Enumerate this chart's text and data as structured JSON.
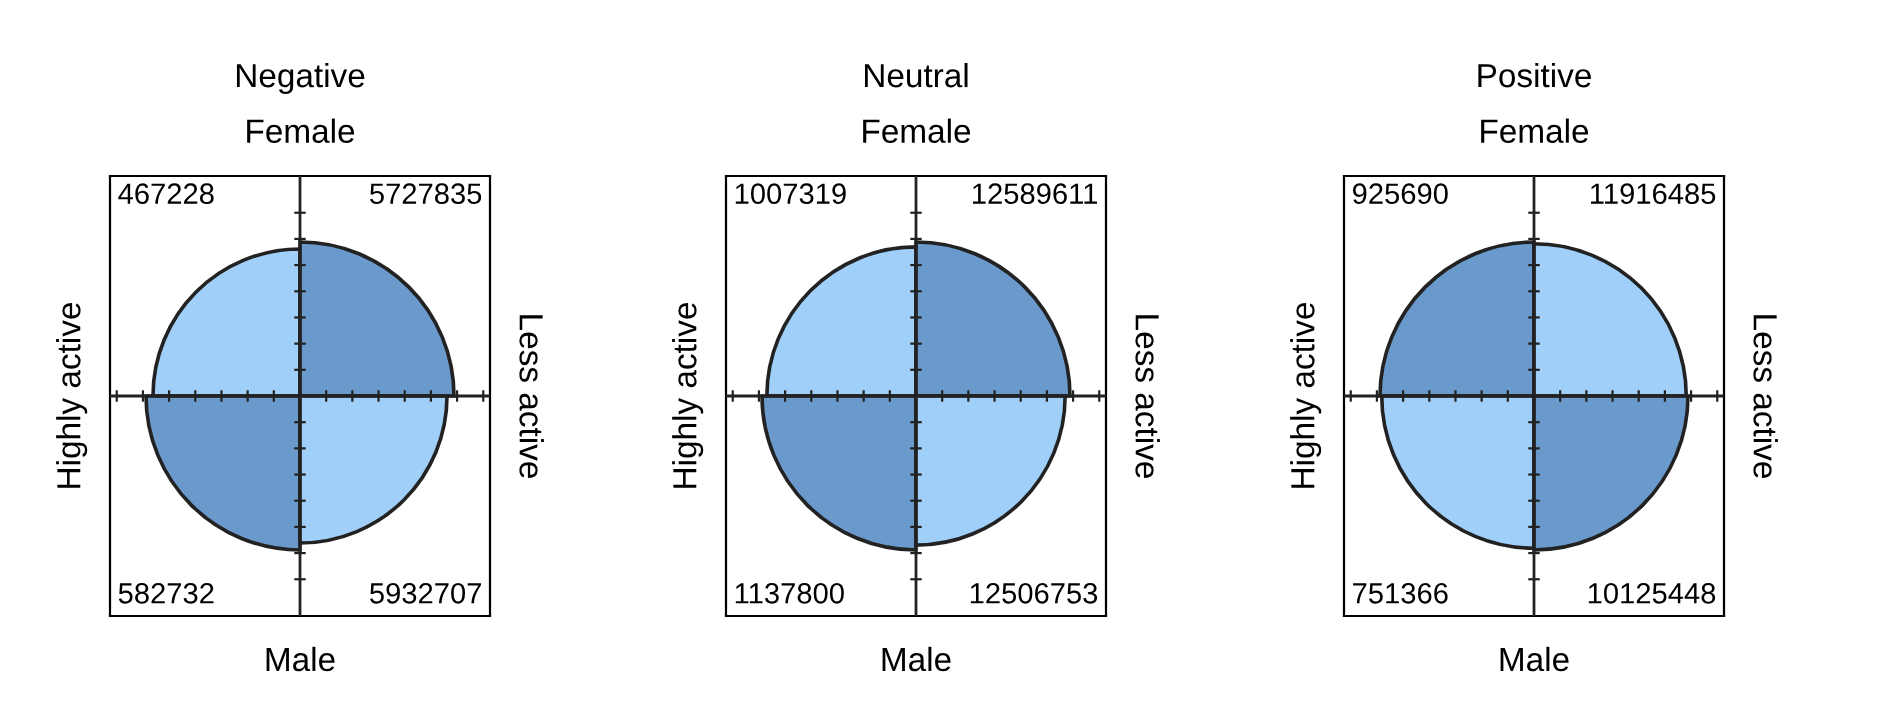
{
  "chart_data": [
    {
      "type": "other",
      "title": "Negative",
      "categories": [
        "Highly active",
        "Less active"
      ],
      "data_labels": true,
      "series": [
        {
          "name": "Female",
          "values": [
            467228,
            5727835
          ],
          "colors": [
            "#a0d0fa",
            "#6a9acb"
          ]
        },
        {
          "name": "Male",
          "values": [
            582732,
            5932707
          ],
          "colors": [
            "#6a9acb",
            "#a0d0fa"
          ]
        }
      ]
    },
    {
      "type": "other",
      "title": "Neutral",
      "categories": [
        "Highly active",
        "Less active"
      ],
      "data_labels": true,
      "series": [
        {
          "name": "Female",
          "values": [
            1007319,
            12589611
          ],
          "colors": [
            "#a0d0fa",
            "#6a9acb"
          ]
        },
        {
          "name": "Male",
          "values": [
            1137800,
            12506753
          ],
          "colors": [
            "#6a9acb",
            "#a0d0fa"
          ]
        }
      ]
    },
    {
      "type": "other",
      "title": "Positive",
      "categories": [
        "Highly active",
        "Less active"
      ],
      "data_labels": true,
      "series": [
        {
          "name": "Female",
          "values": [
            925690,
            11916485
          ],
          "colors": [
            "#6a9acb",
            "#a0d0fa"
          ]
        },
        {
          "name": "Male",
          "values": [
            751366,
            10125448
          ],
          "colors": [
            "#a0d0fa",
            "#6a9acb"
          ]
        }
      ]
    }
  ]
}
